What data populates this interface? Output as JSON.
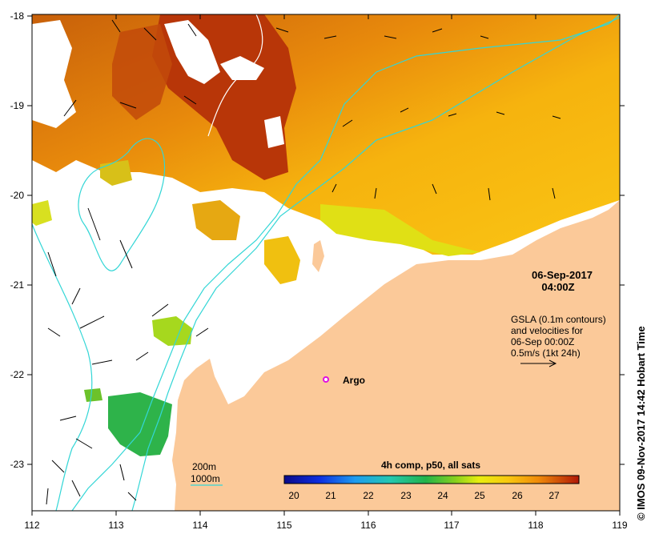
{
  "map": {
    "x_ticks": [
      "112",
      "113",
      "114",
      "115",
      "116",
      "117",
      "118",
      "119"
    ],
    "y_ticks": [
      "-18",
      "-19",
      "-20",
      "-21",
      "-22",
      "-23"
    ],
    "timestamp_date": "06-Sep-2017",
    "timestamp_time": "04:00Z",
    "info_lines": [
      "GSLA (0.1m contours)",
      "and velocities for",
      "06-Sep 00:00Z",
      "0.5m/s (1kt 24h)"
    ],
    "argo_label": "Argo",
    "legend_200m": "200m",
    "legend_1000m": "1000m",
    "colorbar_title": "4h comp, p50, all sats",
    "colorbar_ticks": [
      "20",
      "21",
      "22",
      "23",
      "24",
      "25",
      "26",
      "27"
    ],
    "credit": "© IMOS 09-Nov-2017 14:42 Hobart Time",
    "colors": {
      "land": "#fbc999",
      "isobath": "#33d6d6",
      "argo": "#e010e0"
    }
  }
}
